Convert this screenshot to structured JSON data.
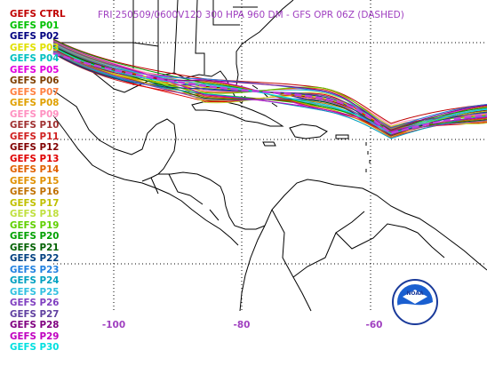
{
  "title": "FRI 250509/0600V120  300 HPA 960 DM - GFS OPR 06Z (DASHED)",
  "legend": [
    {
      "label": "GEFS CTRL",
      "color": "#c00000"
    },
    {
      "label": "GEFS P01",
      "color": "#00c000"
    },
    {
      "label": "GEFS P02",
      "color": "#000080"
    },
    {
      "label": "GEFS P03",
      "color": "#e0e000"
    },
    {
      "label": "GEFS P04",
      "color": "#00c0c0"
    },
    {
      "label": "GEFS P05",
      "color": "#e000e0"
    },
    {
      "label": "GEFS P06",
      "color": "#804000"
    },
    {
      "label": "GEFS P07",
      "color": "#ff8040"
    },
    {
      "label": "GEFS P08",
      "color": "#e0a000"
    },
    {
      "label": "GEFS P09",
      "color": "#ff90c0"
    },
    {
      "label": "GEFS P10",
      "color": "#a03030"
    },
    {
      "label": "GEFS P11",
      "color": "#d02020"
    },
    {
      "label": "GEFS P12",
      "color": "#800000"
    },
    {
      "label": "GEFS P13",
      "color": "#e00000"
    },
    {
      "label": "GEFS P14",
      "color": "#e06000"
    },
    {
      "label": "GEFS P15",
      "color": "#e09000"
    },
    {
      "label": "GEFS P16",
      "color": "#c07000"
    },
    {
      "label": "GEFS P17",
      "color": "#c0c000"
    },
    {
      "label": "GEFS P18",
      "color": "#c0e040"
    },
    {
      "label": "GEFS P19",
      "color": "#60d000"
    },
    {
      "label": "GEFS P20",
      "color": "#00a000"
    },
    {
      "label": "GEFS P21",
      "color": "#006000"
    },
    {
      "label": "GEFS P22",
      "color": "#004080"
    },
    {
      "label": "GEFS P23",
      "color": "#2080e0"
    },
    {
      "label": "GEFS P24",
      "color": "#00a0c0"
    },
    {
      "label": "GEFS P25",
      "color": "#30c0e0"
    },
    {
      "label": "GEFS P26",
      "color": "#8040c0"
    },
    {
      "label": "GEFS P27",
      "color": "#6040a0"
    },
    {
      "label": "GEFS P28",
      "color": "#800080"
    },
    {
      "label": "GEFS P29",
      "color": "#c000c0"
    },
    {
      "label": "GEFS P30",
      "color": "#00e0e0"
    }
  ],
  "lon_ticks": [
    "-100",
    "-80",
    "-60"
  ],
  "logo_text": "NOAA",
  "colors": {
    "grid": "#000000",
    "coast": "#000000",
    "title": "#a040c0",
    "opr": "#c040e0"
  }
}
